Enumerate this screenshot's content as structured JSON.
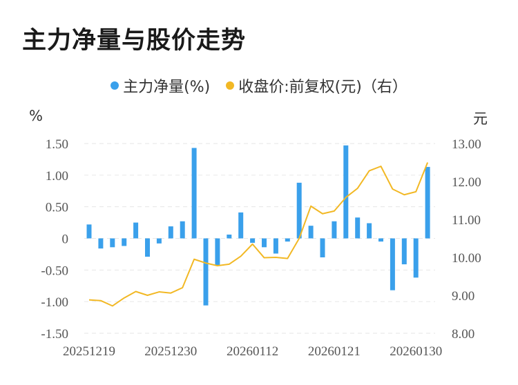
{
  "chart_data": {
    "type": "bar+line",
    "title": "主力净量与股价走势",
    "legend": [
      {
        "name": "主力净量(%)",
        "color": "#3AA0EB"
      },
      {
        "name": "收盘价:前复权(元)（右）",
        "color": "#F2B824"
      }
    ],
    "y_left": {
      "unit": "%",
      "ticks": [
        "1.50",
        "1.00",
        "0.50",
        "0",
        "-0.50",
        "-1.00",
        "-1.50"
      ],
      "range": [
        -1.5,
        1.5
      ]
    },
    "y_right": {
      "unit": "元",
      "ticks": [
        "13.00",
        "12.00",
        "11.00",
        "10.00",
        "9.00",
        "8.00"
      ],
      "range": [
        8.0,
        13.0
      ]
    },
    "x_tick_labels": [
      {
        "label": "20251219",
        "index": 0
      },
      {
        "label": "20251230",
        "index": 7
      },
      {
        "label": "20260112",
        "index": 14
      },
      {
        "label": "20260121",
        "index": 21
      },
      {
        "label": "20260130",
        "index": 28
      }
    ],
    "series": [
      {
        "name": "主力净量(%)",
        "type": "bar",
        "color": "#3AA0EB",
        "values": [
          0.22,
          -0.16,
          -0.14,
          -0.12,
          0.25,
          -0.29,
          -0.08,
          0.19,
          0.27,
          1.43,
          -1.06,
          -0.42,
          0.06,
          0.41,
          -0.07,
          -0.14,
          -0.24,
          -0.05,
          0.88,
          0.2,
          -0.3,
          0.27,
          1.47,
          0.33,
          0.24,
          -0.05,
          -0.82,
          -0.41,
          -0.62,
          1.13
        ]
      },
      {
        "name": "收盘价:前复权(元)（右）",
        "type": "line",
        "color": "#F2B824",
        "values": [
          8.88,
          8.86,
          8.72,
          8.93,
          9.1,
          9.0,
          9.09,
          9.06,
          9.2,
          9.95,
          9.85,
          9.78,
          9.82,
          10.03,
          10.35,
          9.99,
          10.0,
          9.97,
          10.5,
          11.35,
          11.15,
          11.22,
          11.58,
          11.82,
          12.28,
          12.4,
          11.8,
          11.65,
          11.73,
          12.5
        ]
      }
    ]
  }
}
